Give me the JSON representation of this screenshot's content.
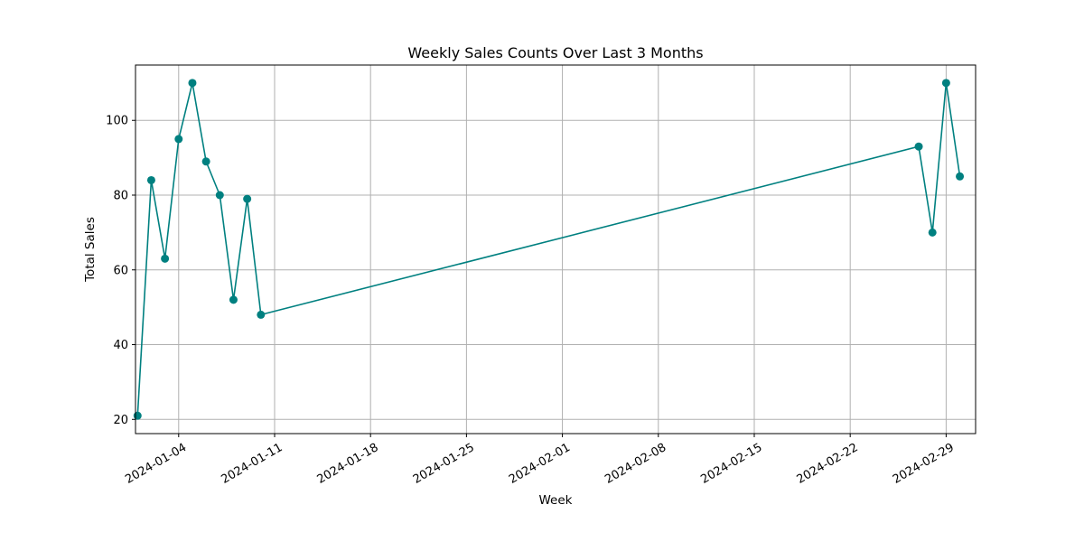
{
  "chart_data": {
    "type": "line",
    "title": "Weekly Sales Counts Over Last 3 Months",
    "xlabel": "Week",
    "ylabel": "Total Sales",
    "x_axis_kind": "date",
    "xlim": [
      "2024-01-01",
      "2024-03-03"
    ],
    "ylim": [
      16.2,
      114.8
    ],
    "grid": true,
    "x_ticks": [
      "2024-01-04",
      "2024-01-11",
      "2024-01-18",
      "2024-01-25",
      "2024-02-01",
      "2024-02-08",
      "2024-02-15",
      "2024-02-22",
      "2024-02-29"
    ],
    "y_ticks": [
      20,
      40,
      60,
      80,
      100
    ],
    "series": [
      {
        "color": "#008080",
        "marker": "circle",
        "points": [
          {
            "x": "2024-01-01",
            "y": 21
          },
          {
            "x": "2024-01-02",
            "y": 84
          },
          {
            "x": "2024-01-03",
            "y": 63
          },
          {
            "x": "2024-01-04",
            "y": 95
          },
          {
            "x": "2024-01-05",
            "y": 110
          },
          {
            "x": "2024-01-06",
            "y": 89
          },
          {
            "x": "2024-01-07",
            "y": 80
          },
          {
            "x": "2024-01-08",
            "y": 52
          },
          {
            "x": "2024-01-09",
            "y": 79
          },
          {
            "x": "2024-01-10",
            "y": 48
          },
          {
            "x": "2024-02-27",
            "y": 93
          },
          {
            "x": "2024-02-28",
            "y": 70
          },
          {
            "x": "2024-02-29",
            "y": 110
          },
          {
            "x": "2024-03-01",
            "y": 85
          }
        ]
      }
    ]
  }
}
